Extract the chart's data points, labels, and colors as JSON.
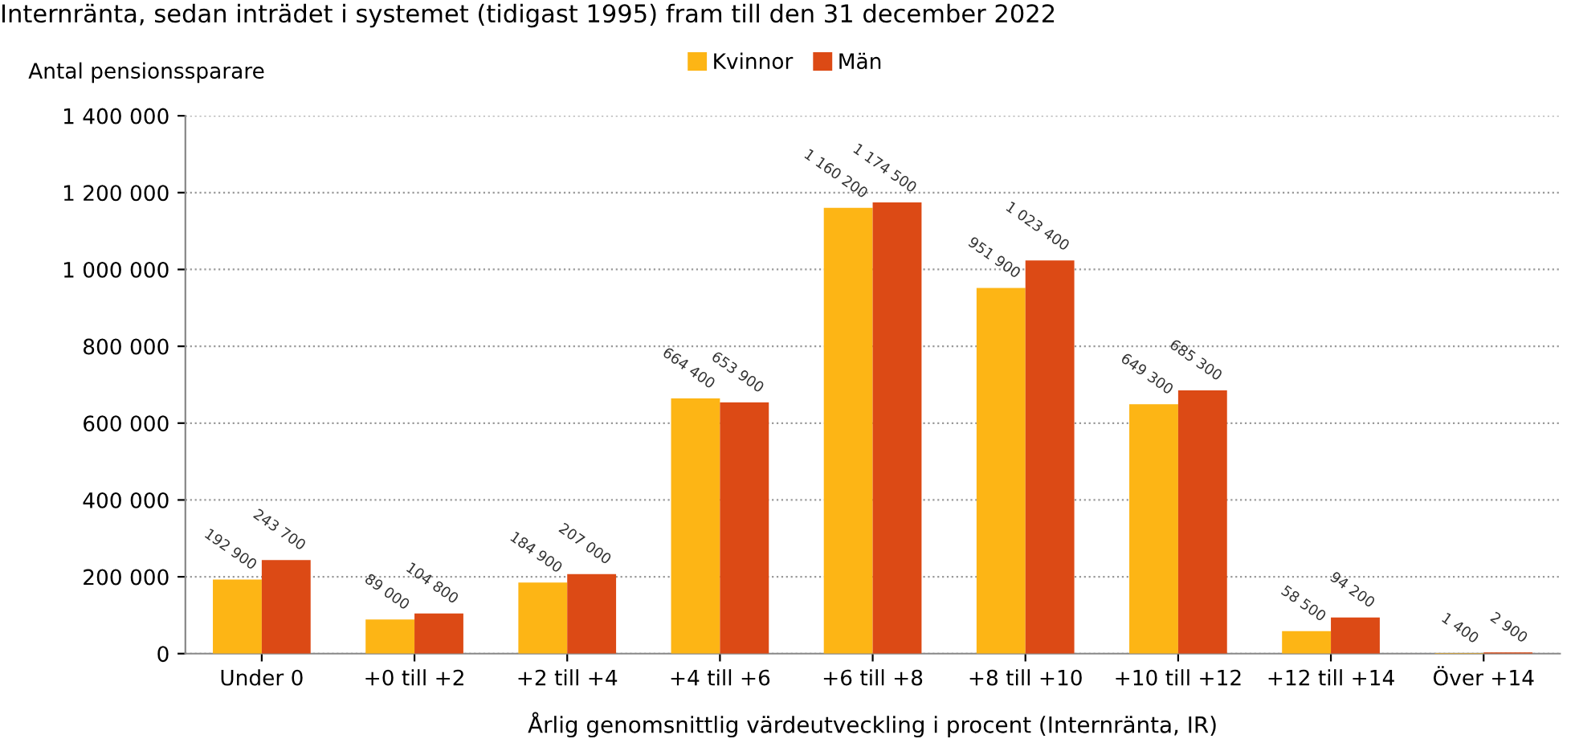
{
  "chart_data": {
    "type": "bar",
    "title": "Internränta, sedan inträdet i systemet (tidigast 1995) fram till den 31 december 2022",
    "ylabel": "Antal pensionssparare",
    "xlabel": "Årlig genomsnittlig värdeutveckling i procent (Internränta, IR)",
    "categories": [
      "Under 0",
      "+0 till +2",
      "+2 till +4",
      "+4 till +6",
      "+6 till +8",
      "+8 till +10",
      "+10 till +12",
      "+12 till +14",
      "Över +14"
    ],
    "series": [
      {
        "name": "Kvinnor",
        "color": "#fdb515",
        "values": [
          192900,
          89000,
          184900,
          664400,
          1160200,
          951900,
          649300,
          58500,
          1400
        ],
        "value_labels": [
          "192 900",
          "89 000",
          "184 900",
          "664 400",
          "1 160 200",
          "951 900",
          "649 300",
          "58 500",
          "1 400"
        ]
      },
      {
        "name": "Män",
        "color": "#dc4a15",
        "values": [
          243700,
          104800,
          207000,
          653900,
          1174500,
          1023400,
          685300,
          94200,
          2900
        ],
        "value_labels": [
          "243 700",
          "104 800",
          "207 000",
          "653 900",
          "1 174 500",
          "1 023 400",
          "685 300",
          "94 200",
          "2 900"
        ]
      }
    ],
    "ylim": [
      0,
      1400000
    ],
    "yticks": [
      0,
      {
        "value": 200000,
        "label": "200 000"
      },
      {
        "value": 400000,
        "label": "400 000"
      },
      {
        "value": 600000,
        "label": "600 000"
      },
      {
        "value": 800000,
        "label": "800 000"
      },
      {
        "value": 1000000,
        "label": "1 000 000"
      },
      {
        "value": 1200000,
        "label": "1 200 000"
      },
      {
        "value": 1400000,
        "label": "1 400 000"
      }
    ],
    "grid": "y",
    "legend": "top"
  }
}
